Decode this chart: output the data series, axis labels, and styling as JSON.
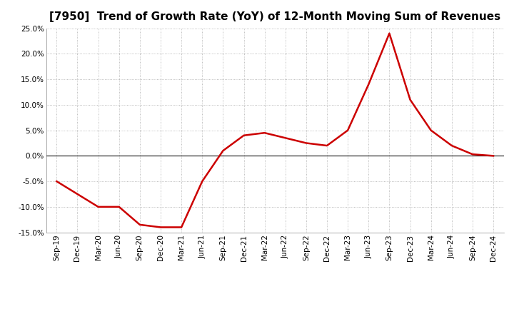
{
  "title": "[7950]  Trend of Growth Rate (YoY) of 12-Month Moving Sum of Revenues",
  "x_labels": [
    "Sep-19",
    "Dec-19",
    "Mar-20",
    "Jun-20",
    "Sep-20",
    "Dec-20",
    "Mar-21",
    "Jun-21",
    "Sep-21",
    "Dec-21",
    "Mar-22",
    "Jun-22",
    "Sep-22",
    "Dec-22",
    "Mar-23",
    "Jun-23",
    "Sep-23",
    "Dec-23",
    "Mar-24",
    "Jun-24",
    "Sep-24",
    "Dec-24"
  ],
  "y_values": [
    -0.05,
    -0.075,
    -0.1,
    -0.1,
    -0.135,
    -0.14,
    -0.14,
    -0.05,
    0.01,
    0.04,
    0.045,
    0.035,
    0.025,
    0.02,
    0.05,
    0.14,
    0.24,
    0.11,
    0.05,
    0.02,
    0.003,
    0.0
  ],
  "line_color": "#cc0000",
  "line_width": 1.8,
  "ylim": [
    -0.15,
    0.25
  ],
  "yticks": [
    -0.15,
    -0.1,
    -0.05,
    0.0,
    0.05,
    0.1,
    0.15,
    0.2,
    0.25
  ],
  "background_color": "#ffffff",
  "plot_bg_color": "#ffffff",
  "grid_color": "#aaaaaa",
  "title_fontsize": 11,
  "tick_fontsize": 7.5,
  "title_fontfamily": "sans-serif"
}
